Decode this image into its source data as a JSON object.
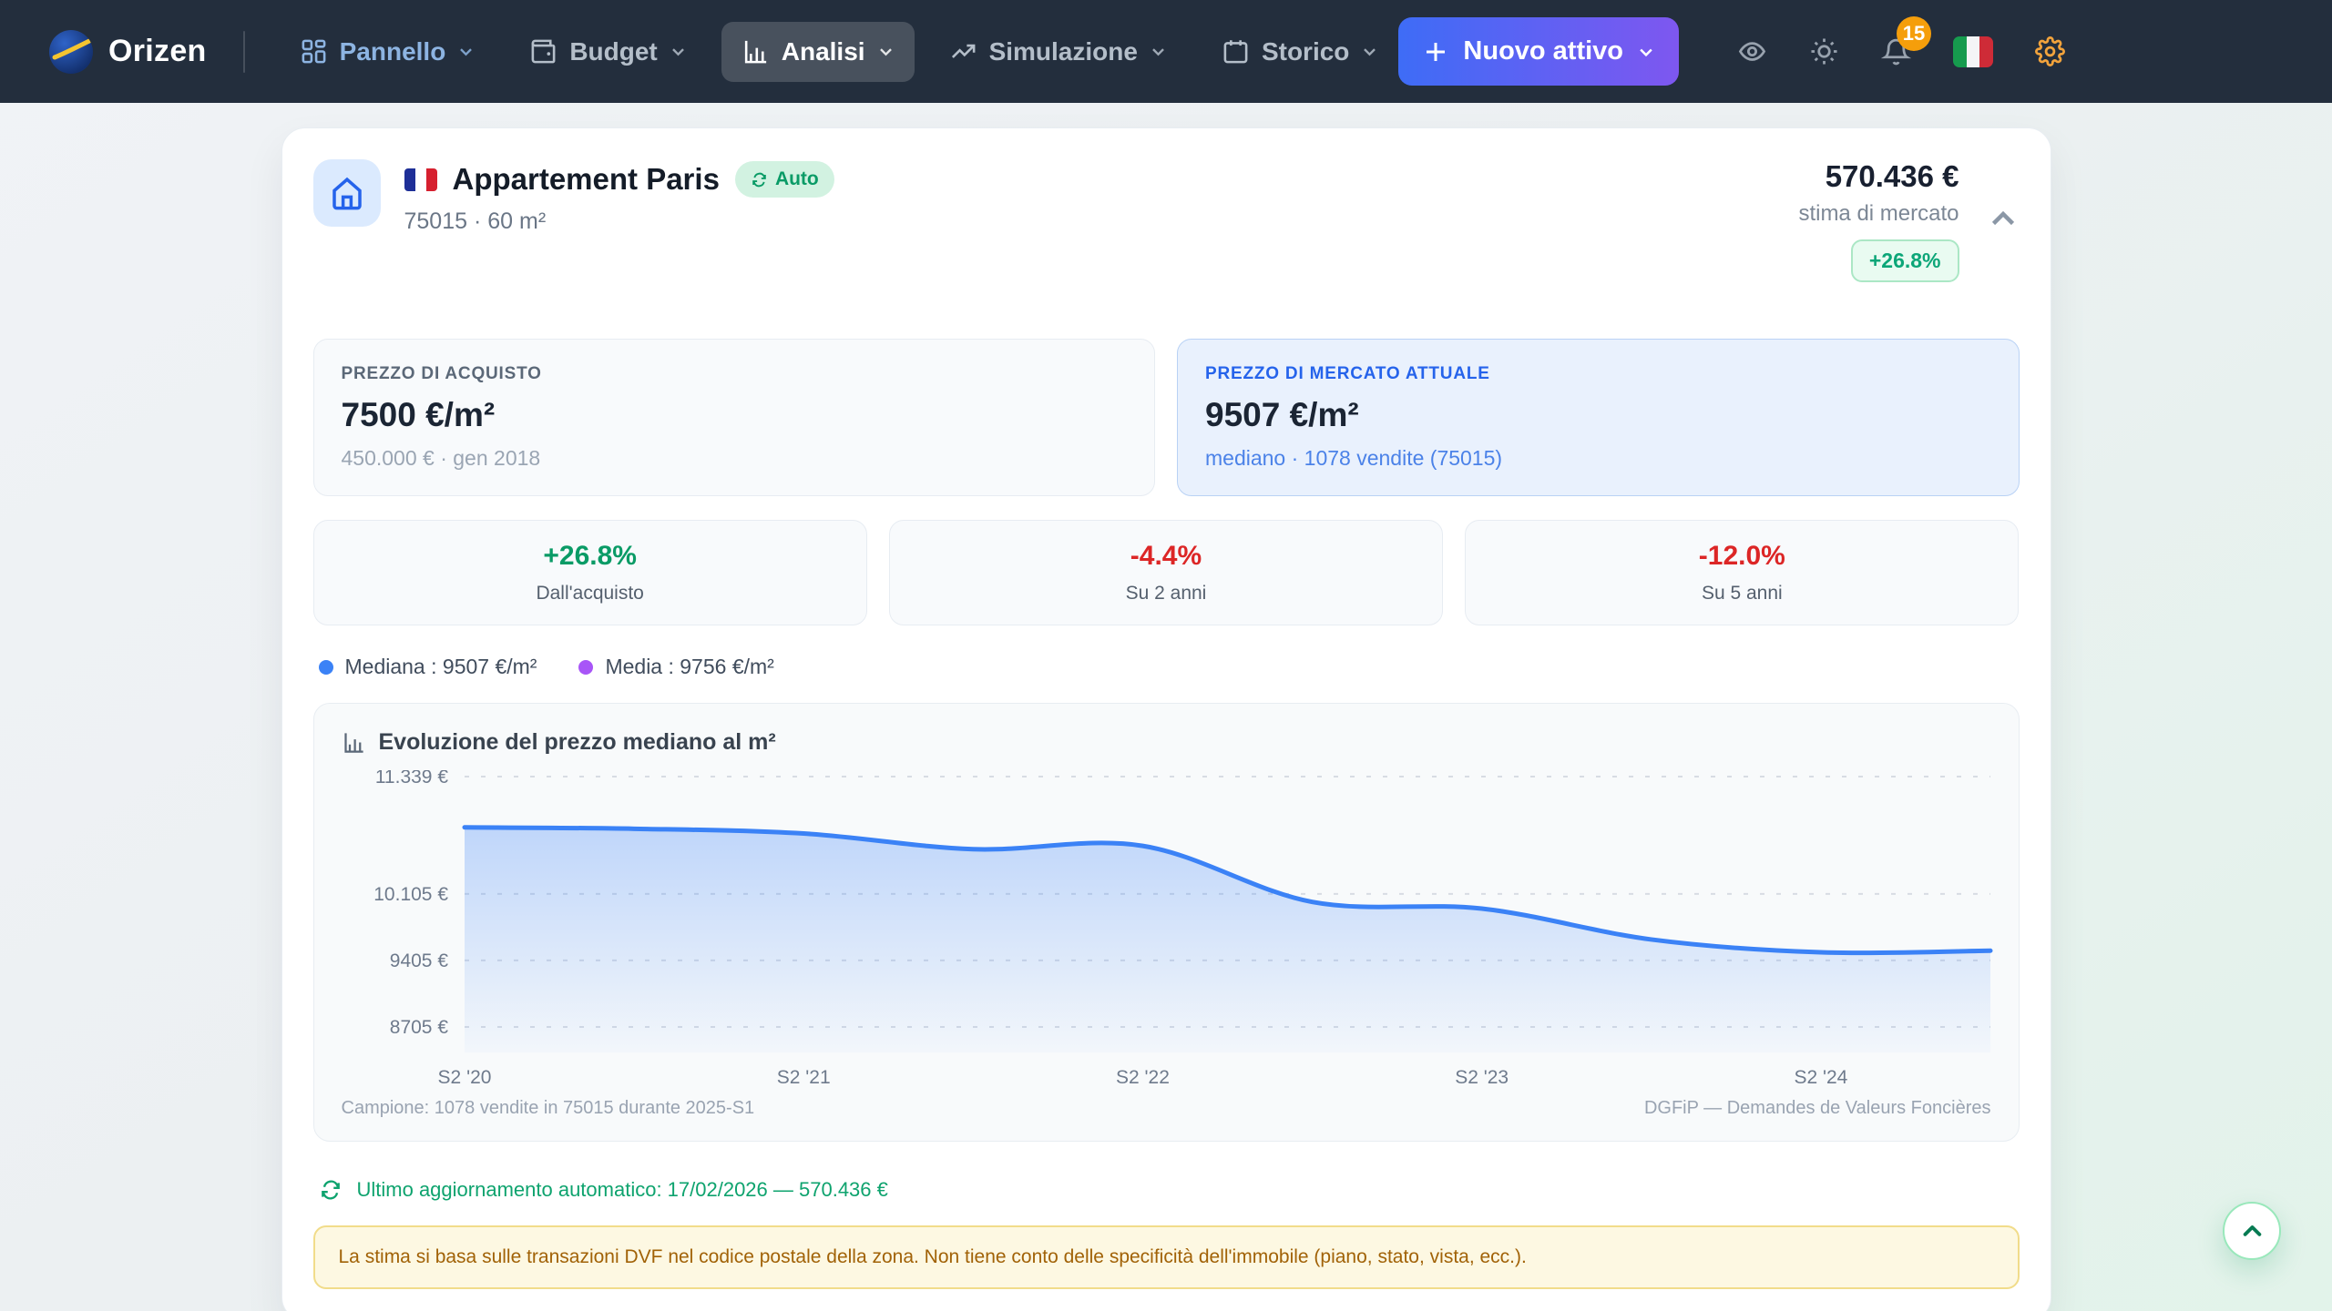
{
  "brand": {
    "name": "Orizen"
  },
  "nav": {
    "items": [
      {
        "label": "Pannello",
        "icon": "dashboard-grid-icon",
        "active": false
      },
      {
        "label": "Budget",
        "icon": "wallet-icon",
        "active": false
      },
      {
        "label": "Analisi",
        "icon": "bar-chart-icon",
        "active": true
      },
      {
        "label": "Simulazione",
        "icon": "trending-up-icon",
        "active": false
      },
      {
        "label": "Storico",
        "icon": "calendar-icon",
        "active": false
      }
    ],
    "new_asset_label": "Nuovo attivo",
    "notification_count": "15",
    "language_flag": "it"
  },
  "asset": {
    "flag": "fr",
    "title": "Appartement Paris",
    "auto_badge": "Auto",
    "subtitle": "75015 · 60 m²",
    "estimate_value": "570.436 €",
    "estimate_label": "stima di mercato",
    "estimate_change": "+26.8%"
  },
  "purchase_card": {
    "label": "PREZZO DI ACQUISTO",
    "value": "7500 €/m²",
    "sub": "450.000 € · gen 2018"
  },
  "market_card": {
    "label": "PREZZO DI MERCATO ATTUALE",
    "value": "9507 €/m²",
    "sub": "mediano · 1078 vendite (75015)"
  },
  "stats": [
    {
      "value": "+26.8%",
      "label": "Dall'acquisto",
      "direction": "positive"
    },
    {
      "value": "-4.4%",
      "label": "Su 2 anni",
      "direction": "negative"
    },
    {
      "value": "-12.0%",
      "label": "Su 5 anni",
      "direction": "negative"
    }
  ],
  "legend": [
    {
      "label": "Mediana : 9507 €/m²",
      "color": "#3b82f6"
    },
    {
      "label": "Media : 9756 €/m²",
      "color": "#a855f7"
    }
  ],
  "chart_data": {
    "type": "area",
    "title": "Evoluzione del prezzo mediano al m²",
    "x": [
      "S2 '20",
      "S1 '21",
      "S2 '21",
      "S1 '22",
      "S2 '22",
      "S1 '23",
      "S2 '23",
      "S1 '24",
      "S2 '24",
      "S1 '25"
    ],
    "values": [
      10805,
      10790,
      10740,
      10575,
      10610,
      10020,
      9950,
      9625,
      9490,
      9507
    ],
    "unit": "€/m²",
    "ylabel": "prezzo mediano al m²",
    "ylim": [
      8456,
      11406
    ],
    "y_ticks": [
      {
        "label": "11.339 €",
        "value": 11339
      },
      {
        "label": "10.105 €",
        "value": 10105
      },
      {
        "label": "9405 €",
        "value": 9405
      },
      {
        "label": "8705 €",
        "value": 8705
      }
    ],
    "x_ticks": [
      {
        "label": "S2 '20",
        "index": 0
      },
      {
        "label": "S2 '21",
        "index": 2
      },
      {
        "label": "S2 '22",
        "index": 4
      },
      {
        "label": "S2 '23",
        "index": 6
      },
      {
        "label": "S2 '24",
        "index": 8
      }
    ],
    "grid": "horizontal-dotted",
    "legend_position": "above-chart",
    "line_color": "#3b82f6",
    "mean_color": "#a855f7",
    "footer_left": "Campione: 1078 vendite in 75015 durante 2025-S1",
    "footer_right": "DGFiP — Demandes de Valeurs Foncières"
  },
  "update_note": "Ultimo aggiornamento automatico: 17/02/2026 — 570.436 €",
  "disclaimer": "La stima si basa sulle transazioni DVF nel codice postale della zona. Non tiene conto delle specificità dell'immobile (piano, stato, vista, ecc.).",
  "colors": {
    "accent_blue": "#2563eb",
    "positive_green": "#0a9b66",
    "negative_red": "#dc2626",
    "warning_amber": "#a16207",
    "navbar_bg": "#232e3d"
  }
}
